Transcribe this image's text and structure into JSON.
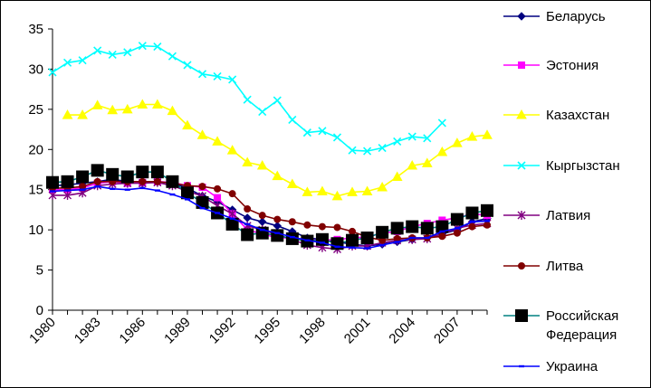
{
  "chart_data": {
    "type": "line",
    "title": "",
    "xlabel": "",
    "ylabel": "",
    "ylim": [
      0,
      35
    ],
    "xlim": [
      1980,
      2009
    ],
    "y_ticks": [
      0,
      5,
      10,
      15,
      20,
      25,
      30,
      35
    ],
    "x_tick_labels": [
      "1980",
      "1983",
      "1986",
      "1989",
      "1992",
      "1995",
      "1998",
      "2001",
      "2004",
      "2007"
    ],
    "grid": false,
    "legend_position": "right",
    "series": [
      {
        "name": "Беларусь",
        "color": "#000080",
        "marker": "diamond",
        "x": [
          1980,
          1981,
          1982,
          1983,
          1984,
          1985,
          1986,
          1987,
          1988,
          1989,
          1990,
          1991,
          1992,
          1993,
          1994,
          1995,
          1996,
          1997,
          1998,
          1999,
          2000,
          2001,
          2002,
          2003,
          2004,
          2005,
          2006,
          2007,
          2008,
          2009
        ],
        "y": [
          15.5,
          15.6,
          15.8,
          16.0,
          16.3,
          16.0,
          15.8,
          16.0,
          15.8,
          15.2,
          14.2,
          13.5,
          12.5,
          11.5,
          11.0,
          10.5,
          9.8,
          9.0,
          8.8,
          8.5,
          8.2,
          8.0,
          8.2,
          8.5,
          8.8,
          9.0,
          9.5,
          10.0,
          11.0,
          11.4
        ]
      },
      {
        "name": "Эстония",
        "color": "#ff00ff",
        "marker": "square",
        "x": [
          1980,
          1981,
          1982,
          1983,
          1984,
          1985,
          1986,
          1987,
          1988,
          1989,
          1990,
          1991,
          1992,
          1993,
          1994,
          1995,
          1996,
          1997,
          1998,
          1999,
          2000,
          2001,
          2002,
          2003,
          2004,
          2005,
          2006,
          2007,
          2008,
          2009
        ],
        "y": [
          15.0,
          15.0,
          15.2,
          15.8,
          16.0,
          15.8,
          15.9,
          16.0,
          15.9,
          15.5,
          15.3,
          14.0,
          12.0,
          10.0,
          9.5,
          9.0,
          9.0,
          8.8,
          8.7,
          8.8,
          9.0,
          9.1,
          9.6,
          9.8,
          10.4,
          10.8,
          11.2,
          11.5,
          12.0,
          11.8
        ]
      },
      {
        "name": "Казахстан",
        "color": "#ffff00",
        "marker": "triangle",
        "x": [
          1981,
          1982,
          1983,
          1984,
          1985,
          1986,
          1987,
          1988,
          1989,
          1990,
          1991,
          1992,
          1993,
          1994,
          1995,
          1996,
          1997,
          1998,
          1999,
          2000,
          2001,
          2002,
          2003,
          2004,
          2005,
          2006,
          2007,
          2008,
          2009
        ],
        "y": [
          24.3,
          24.3,
          25.5,
          24.9,
          25.0,
          25.6,
          25.6,
          24.8,
          23.0,
          21.8,
          21.0,
          19.9,
          18.4,
          18.0,
          16.7,
          15.7,
          14.7,
          14.8,
          14.2,
          14.7,
          14.8,
          15.3,
          16.6,
          18.0,
          18.3,
          19.7,
          20.8,
          21.6,
          21.8
        ]
      },
      {
        "name": "Кыргызстан",
        "color": "#00ffff",
        "marker": "x",
        "x": [
          1980,
          1981,
          1982,
          1983,
          1984,
          1985,
          1986,
          1987,
          1988,
          1989,
          1990,
          1991,
          1992,
          1993,
          1994,
          1995,
          1996,
          1997,
          1998,
          1999,
          2000,
          2001,
          2002,
          2003,
          2004,
          2005,
          2006
        ],
        "y": [
          29.6,
          30.8,
          31.1,
          32.3,
          31.8,
          32.1,
          32.9,
          32.8,
          31.6,
          30.5,
          29.4,
          29.1,
          28.7,
          26.2,
          24.7,
          26.1,
          23.7,
          22.1,
          22.3,
          21.5,
          19.9,
          19.8,
          20.2,
          21.0,
          21.6,
          21.4,
          23.3
        ]
      },
      {
        "name": "Латвия",
        "color": "#800080",
        "marker": "asterisk",
        "x": [
          1980,
          1981,
          1982,
          1983,
          1984,
          1985,
          1986,
          1987,
          1988,
          1989,
          1990,
          1991,
          1992,
          1993,
          1994,
          1995,
          1996,
          1997,
          1998,
          1999,
          2000,
          2001,
          2002,
          2003,
          2004,
          2005,
          2006,
          2007,
          2008,
          2009
        ],
        "y": [
          14.3,
          14.3,
          14.6,
          15.5,
          15.7,
          15.8,
          15.8,
          15.9,
          15.5,
          14.8,
          14.2,
          13.0,
          12.0,
          10.5,
          10.0,
          9.4,
          8.8,
          8.1,
          7.8,
          7.6,
          8.0,
          8.0,
          8.4,
          8.7,
          8.8,
          8.9,
          9.5,
          10.2,
          10.6,
          10.8
        ]
      },
      {
        "name": "Литва",
        "color": "#800000",
        "marker": "circle",
        "x": [
          1980,
          1981,
          1982,
          1983,
          1984,
          1985,
          1986,
          1987,
          1988,
          1989,
          1990,
          1991,
          1992,
          1993,
          1994,
          1995,
          1996,
          1997,
          1998,
          1999,
          2000,
          2001,
          2002,
          2003,
          2004,
          2005,
          2006,
          2007,
          2008,
          2009
        ],
        "y": [
          15.2,
          15.2,
          15.4,
          16.0,
          16.0,
          16.0,
          16.0,
          16.0,
          15.8,
          15.5,
          15.4,
          15.1,
          14.5,
          12.6,
          11.8,
          11.3,
          11.0,
          10.6,
          10.4,
          10.3,
          9.8,
          9.1,
          8.7,
          8.9,
          9.0,
          9.0,
          9.2,
          9.6,
          10.4,
          10.6
        ]
      },
      {
        "name": "Российская Федерация",
        "color": "#000000",
        "line_color": "#008080",
        "marker": "bigsquare",
        "x": [
          1980,
          1981,
          1982,
          1983,
          1984,
          1985,
          1986,
          1987,
          1988,
          1989,
          1990,
          1991,
          1992,
          1993,
          1994,
          1995,
          1996,
          1997,
          1998,
          1999,
          2000,
          2001,
          2002,
          2003,
          2004,
          2005,
          2006,
          2007,
          2008,
          2009
        ],
        "y": [
          15.9,
          16.0,
          16.6,
          17.4,
          16.9,
          16.6,
          17.2,
          17.2,
          16.0,
          14.6,
          13.4,
          12.1,
          10.7,
          9.4,
          9.6,
          9.3,
          8.9,
          8.6,
          8.8,
          8.3,
          8.7,
          9.0,
          9.7,
          10.2,
          10.4,
          10.2,
          10.4,
          11.3,
          12.1,
          12.4
        ]
      },
      {
        "name": "Украина",
        "color": "#0000ff",
        "marker": "dash",
        "x": [
          1980,
          1981,
          1982,
          1983,
          1984,
          1985,
          1986,
          1987,
          1988,
          1989,
          1990,
          1991,
          1992,
          1993,
          1994,
          1995,
          1996,
          1997,
          1998,
          1999,
          2000,
          2001,
          2002,
          2003,
          2004,
          2005,
          2006,
          2007,
          2008,
          2009
        ],
        "y": [
          14.8,
          14.9,
          15.0,
          15.4,
          15.1,
          15.0,
          15.2,
          14.9,
          14.4,
          13.8,
          12.7,
          12.1,
          11.4,
          10.7,
          10.0,
          9.6,
          9.1,
          8.7,
          8.4,
          7.9,
          7.8,
          7.7,
          8.1,
          8.5,
          9.0,
          9.0,
          9.8,
          10.2,
          11.0,
          11.1
        ]
      }
    ]
  }
}
